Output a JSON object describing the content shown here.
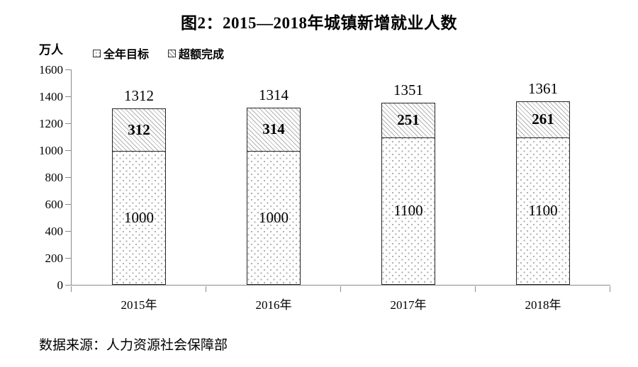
{
  "title": "图2：2015—2018年城镇新增就业人数",
  "y_axis_unit": "万人",
  "legend": [
    {
      "label": "全年目标",
      "pattern": "dots"
    },
    {
      "label": "超额完成",
      "pattern": "hatch"
    }
  ],
  "source": "数据来源：人力资源社会保障部",
  "colors": {
    "axis": "#8a8a8a",
    "bar_border": "#262626",
    "pattern_gray": "#b0b0b0",
    "text": "#000000"
  },
  "chart_data": {
    "type": "bar",
    "stacked": true,
    "title": "图2：2015—2018年城镇新增就业人数",
    "ylabel": "万人",
    "categories": [
      "2015年",
      "2016年",
      "2017年",
      "2018年"
    ],
    "series": [
      {
        "name": "全年目标",
        "pattern": "dots",
        "values": [
          1000,
          1000,
          1100,
          1100
        ]
      },
      {
        "name": "超额完成",
        "pattern": "hatch",
        "values": [
          312,
          314,
          251,
          261
        ]
      }
    ],
    "totals": [
      1312,
      1314,
      1351,
      1361
    ],
    "ylim": [
      0,
      1600
    ],
    "ytick_step": 200,
    "yticks": [
      0,
      200,
      400,
      600,
      800,
      1000,
      1200,
      1400,
      1600
    ],
    "grid": false,
    "legend_position": "top-left",
    "source": "数据来源：人力资源社会保障部"
  }
}
